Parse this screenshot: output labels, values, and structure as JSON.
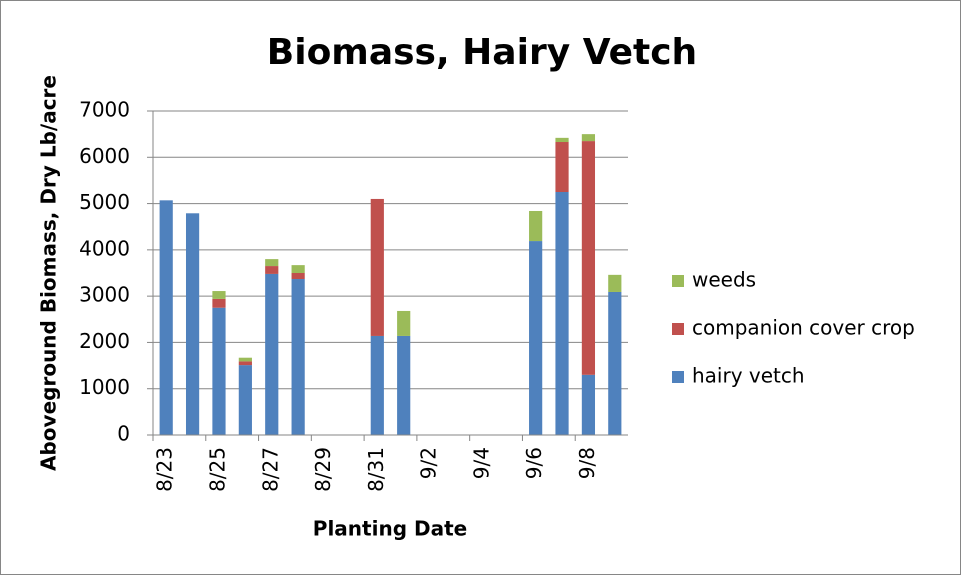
{
  "chart_data": {
    "type": "stacked_bar",
    "title": "Biomass, Hairy Vetch",
    "x_label": "Planting Date",
    "y_label": "Aboveground Biomass, Dry Lb/acre",
    "categories": [
      "8/23",
      null,
      "8/25",
      null,
      "8/27",
      null,
      "8/29",
      null,
      "8/31",
      null,
      "9/2",
      null,
      "9/4",
      null,
      "9/6",
      null,
      "9/8",
      null
    ],
    "series": [
      {
        "name": "hairy vetch",
        "color": "#4f81bd",
        "values": [
          5070,
          4790,
          2750,
          1510,
          3480,
          3370,
          null,
          null,
          2140,
          2140,
          null,
          null,
          null,
          null,
          4190,
          5250,
          1300,
          3090
        ]
      },
      {
        "name": "companion cover crop",
        "color": "#c0504d",
        "values": [
          0,
          0,
          190,
          80,
          170,
          130,
          null,
          null,
          2960,
          0,
          null,
          null,
          null,
          null,
          0,
          1080,
          5050,
          0
        ]
      },
      {
        "name": "weeds",
        "color": "#9bbb59",
        "values": [
          0,
          0,
          170,
          80,
          150,
          170,
          null,
          null,
          0,
          540,
          null,
          null,
          null,
          null,
          650,
          90,
          150,
          370
        ]
      }
    ],
    "ylim": [
      0,
      7000
    ],
    "yticks": [
      0,
      1000,
      2000,
      3000,
      4000,
      5000,
      6000,
      7000
    ],
    "grid": true,
    "legend": "right"
  }
}
